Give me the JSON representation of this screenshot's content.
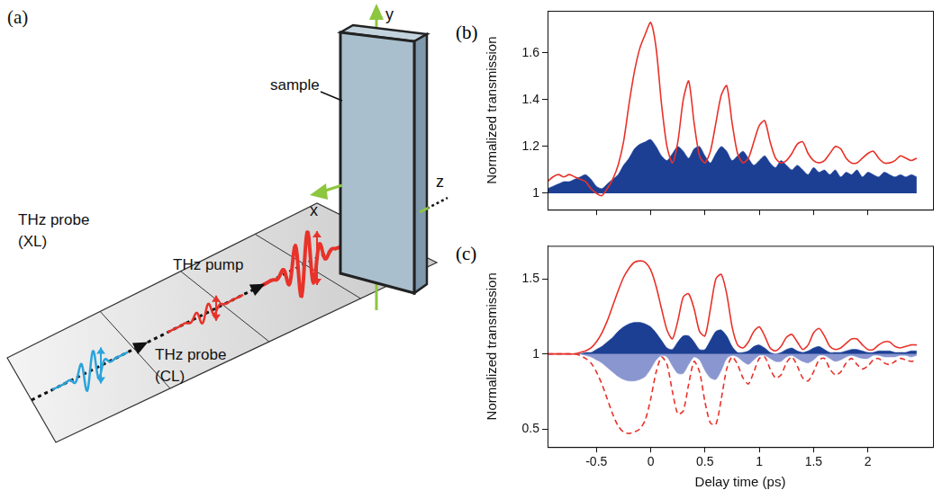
{
  "diagram": {
    "panel": "(a)",
    "sample": "sample",
    "axes": {
      "x": "x",
      "y": "y",
      "z": "z"
    },
    "beams": [
      {
        "label": "THz probe",
        "sublabel": "(XL)",
        "color": "#29a3dc"
      },
      {
        "label": "THz probe",
        "sublabel": "(CL)",
        "color": "#e8322a"
      },
      {
        "label": "THz pump",
        "color": "#e8322a"
      }
    ]
  },
  "chart_data": [
    {
      "panel": "(b)",
      "type": "line",
      "y_label": "Normalized transmission",
      "x": [
        -0.95,
        -0.9,
        -0.85,
        -0.8,
        -0.75,
        -0.7,
        -0.65,
        -0.6,
        -0.55,
        -0.5,
        -0.45,
        -0.4,
        -0.35,
        -0.3,
        -0.25,
        -0.2,
        -0.15,
        -0.1,
        -0.05,
        0,
        0.05,
        0.1,
        0.15,
        0.2,
        0.25,
        0.3,
        0.35,
        0.4,
        0.45,
        0.5,
        0.55,
        0.6,
        0.65,
        0.7,
        0.75,
        0.8,
        0.85,
        0.9,
        0.95,
        1.0,
        1.05,
        1.1,
        1.15,
        1.2,
        1.25,
        1.3,
        1.35,
        1.4,
        1.45,
        1.5,
        1.55,
        1.6,
        1.65,
        1.7,
        1.75,
        1.8,
        1.85,
        1.9,
        1.95,
        2.0,
        2.05,
        2.1,
        2.15,
        2.2,
        2.25,
        2.3,
        2.35,
        2.4,
        2.45
      ],
      "series": [
        {
          "type": "area",
          "color": "#1c3f94",
          "values": [
            1.02,
            1.03,
            1.04,
            1.05,
            1.05,
            1.06,
            1.07,
            1.08,
            1.06,
            1.03,
            1.02,
            1.04,
            1.06,
            1.08,
            1.12,
            1.15,
            1.19,
            1.21,
            1.22,
            1.23,
            1.2,
            1.16,
            1.14,
            1.17,
            1.2,
            1.18,
            1.15,
            1.19,
            1.2,
            1.16,
            1.13,
            1.17,
            1.2,
            1.18,
            1.14,
            1.16,
            1.18,
            1.15,
            1.12,
            1.14,
            1.16,
            1.13,
            1.11,
            1.14,
            1.12,
            1.1,
            1.12,
            1.1,
            1.08,
            1.11,
            1.09,
            1.1,
            1.08,
            1.1,
            1.07,
            1.09,
            1.08,
            1.1,
            1.07,
            1.09,
            1.08,
            1.07,
            1.09,
            1.08,
            1.07,
            1.08,
            1.07,
            1.08,
            1.07
          ]
        },
        {
          "type": "line",
          "color": "#e8322a",
          "line_style": "solid",
          "values": [
            1.05,
            1.07,
            1.08,
            1.07,
            1.08,
            1.07,
            1.06,
            1.05,
            1.02,
            1.0,
            0.99,
            1.02,
            1.06,
            1.12,
            1.22,
            1.38,
            1.52,
            1.62,
            1.68,
            1.73,
            1.62,
            1.38,
            1.2,
            1.13,
            1.22,
            1.4,
            1.48,
            1.3,
            1.16,
            1.13,
            1.18,
            1.3,
            1.42,
            1.46,
            1.3,
            1.17,
            1.13,
            1.15,
            1.22,
            1.29,
            1.31,
            1.22,
            1.15,
            1.13,
            1.14,
            1.17,
            1.21,
            1.22,
            1.17,
            1.14,
            1.13,
            1.14,
            1.17,
            1.2,
            1.19,
            1.15,
            1.13,
            1.13,
            1.15,
            1.17,
            1.18,
            1.15,
            1.13,
            1.13,
            1.14,
            1.16,
            1.15,
            1.14,
            1.15
          ]
        }
      ],
      "baseline": 1,
      "xlim": [
        -0.95,
        2.6
      ],
      "xticks": [
        -0.5,
        0,
        0.5,
        1,
        1.5,
        2
      ],
      "ylim": [
        0.93,
        1.78
      ],
      "yticks": [
        1,
        1.2,
        1.4,
        1.6
      ],
      "grid": false,
      "tick_labels": "y"
    },
    {
      "panel": "(c)",
      "type": "line",
      "y_label": "Normalized transmission",
      "x_label": "Delay time (ps)",
      "x": [
        -0.95,
        -0.9,
        -0.85,
        -0.8,
        -0.75,
        -0.7,
        -0.65,
        -0.6,
        -0.55,
        -0.5,
        -0.45,
        -0.4,
        -0.35,
        -0.3,
        -0.25,
        -0.2,
        -0.15,
        -0.1,
        -0.05,
        0,
        0.05,
        0.1,
        0.15,
        0.2,
        0.25,
        0.3,
        0.35,
        0.4,
        0.45,
        0.5,
        0.55,
        0.6,
        0.65,
        0.7,
        0.75,
        0.8,
        0.85,
        0.9,
        0.95,
        1.0,
        1.05,
        1.1,
        1.15,
        1.2,
        1.25,
        1.3,
        1.35,
        1.4,
        1.45,
        1.5,
        1.55,
        1.6,
        1.65,
        1.7,
        1.75,
        1.8,
        1.85,
        1.9,
        1.95,
        2.0,
        2.05,
        2.1,
        2.15,
        2.2,
        2.25,
        2.3,
        2.35,
        2.4,
        2.45
      ],
      "series": [
        {
          "type": "area",
          "color": "#1c3f94",
          "values": [
            1,
            1,
            1,
            1,
            1,
            1,
            1,
            1.01,
            1.01,
            1.03,
            1.05,
            1.08,
            1.11,
            1.15,
            1.18,
            1.2,
            1.21,
            1.21,
            1.2,
            1.18,
            1.14,
            1.09,
            1.04,
            1.03,
            1.08,
            1.12,
            1.12,
            1.08,
            1.03,
            1.03,
            1.09,
            1.15,
            1.16,
            1.12,
            1.05,
            1.01,
            1.01,
            1.02,
            1.05,
            1.06,
            1.04,
            1.01,
            1.0,
            1.01,
            1.03,
            1.04,
            1.02,
            1.01,
            1.02,
            1.04,
            1.05,
            1.03,
            1.01,
            1.01,
            1.01,
            1.02,
            1.03,
            1.03,
            1.02,
            1.01,
            1.01,
            1.02,
            1.02,
            1.02,
            1.01,
            1.01,
            1.01,
            1.02,
            1.02
          ]
        },
        {
          "type": "area",
          "color": "#8a96d0",
          "values": [
            1,
            1,
            1,
            1,
            1,
            1,
            1,
            0.99,
            0.98,
            0.96,
            0.94,
            0.91,
            0.88,
            0.85,
            0.83,
            0.82,
            0.82,
            0.83,
            0.85,
            0.9,
            0.96,
            0.99,
            0.98,
            0.92,
            0.87,
            0.87,
            0.93,
            0.98,
            0.96,
            0.89,
            0.84,
            0.83,
            0.89,
            0.97,
            0.99,
            0.98,
            0.95,
            0.93,
            0.96,
            0.99,
            0.99,
            0.97,
            0.95,
            0.95,
            0.98,
            0.99,
            0.97,
            0.95,
            0.94,
            0.96,
            0.99,
            0.99,
            0.97,
            0.95,
            0.96,
            0.98,
            0.99,
            0.98,
            0.97,
            0.97,
            0.99,
            0.99,
            0.98,
            0.98,
            0.98,
            0.99,
            0.99,
            0.98,
            0.99
          ]
        },
        {
          "type": "line",
          "color": "#e8322a",
          "line_style": "solid",
          "values": [
            1,
            1,
            1,
            1,
            1,
            1,
            1.01,
            1.02,
            1.04,
            1.08,
            1.14,
            1.22,
            1.32,
            1.42,
            1.51,
            1.57,
            1.61,
            1.62,
            1.61,
            1.56,
            1.45,
            1.3,
            1.16,
            1.1,
            1.22,
            1.38,
            1.4,
            1.3,
            1.15,
            1.12,
            1.3,
            1.5,
            1.53,
            1.4,
            1.18,
            1.06,
            1.04,
            1.08,
            1.15,
            1.18,
            1.12,
            1.04,
            1.02,
            1.05,
            1.11,
            1.13,
            1.08,
            1.03,
            1.06,
            1.14,
            1.17,
            1.12,
            1.05,
            1.03,
            1.04,
            1.07,
            1.1,
            1.1,
            1.06,
            1.03,
            1.03,
            1.06,
            1.08,
            1.08,
            1.05,
            1.04,
            1.05,
            1.06,
            1.06
          ]
        },
        {
          "type": "line",
          "color": "#e8322a",
          "line_style": "dashed",
          "values": [
            1,
            1,
            1,
            1,
            1,
            1,
            0.99,
            0.97,
            0.94,
            0.88,
            0.8,
            0.7,
            0.6,
            0.52,
            0.48,
            0.47,
            0.48,
            0.5,
            0.56,
            0.7,
            0.88,
            0.98,
            0.93,
            0.75,
            0.6,
            0.62,
            0.8,
            0.95,
            0.88,
            0.68,
            0.54,
            0.53,
            0.7,
            0.9,
            0.98,
            0.93,
            0.84,
            0.8,
            0.88,
            0.97,
            0.98,
            0.9,
            0.84,
            0.86,
            0.94,
            0.98,
            0.92,
            0.84,
            0.82,
            0.88,
            0.96,
            0.97,
            0.9,
            0.86,
            0.88,
            0.94,
            0.97,
            0.93,
            0.9,
            0.92,
            0.96,
            0.97,
            0.94,
            0.93,
            0.95,
            0.97,
            0.96,
            0.95,
            0.96
          ]
        }
      ],
      "baseline": 1,
      "xlim": [
        -0.95,
        2.6
      ],
      "xticks": [
        -0.5,
        0,
        0.5,
        1,
        1.5,
        2
      ],
      "ylim": [
        0.38,
        1.72
      ],
      "yticks": [
        0.5,
        1,
        1.5
      ],
      "grid": false
    }
  ]
}
